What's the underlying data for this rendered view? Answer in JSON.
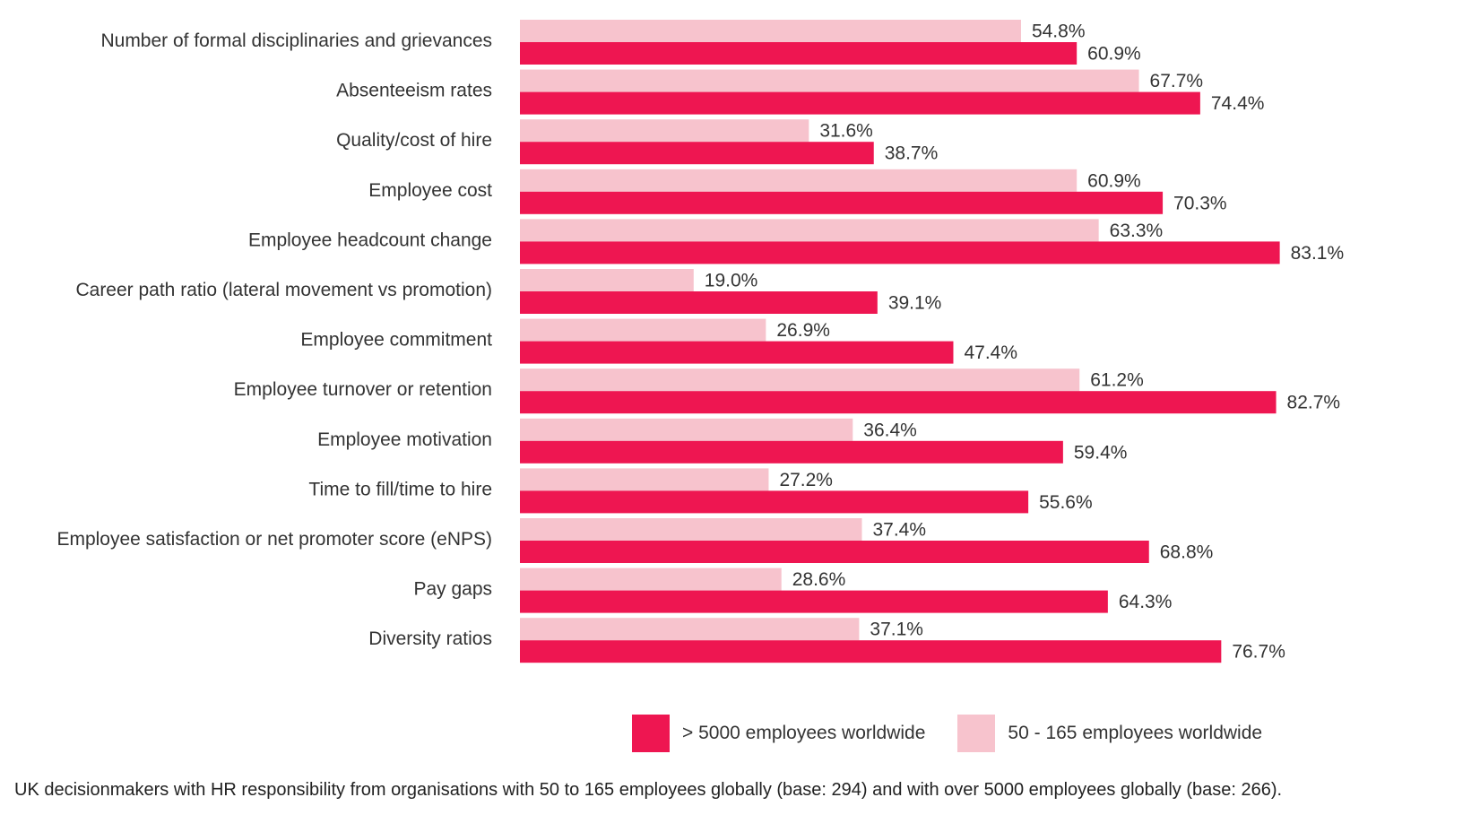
{
  "chart_data": {
    "type": "bar",
    "orientation": "horizontal",
    "categories": [
      "Number of formal disciplinaries and grievances",
      "Absenteeism rates",
      "Quality/cost of hire",
      "Employee cost",
      "Employee headcount change",
      "Career path ratio (lateral movement vs promotion)",
      "Employee commitment",
      "Employee turnover or retention",
      "Employee motivation",
      "Time to fill/time to hire",
      "Employee satisfaction or net promoter score (eNPS)",
      "Pay gaps",
      "Diversity ratios"
    ],
    "series": [
      {
        "name": "50 - 165 employees worldwide",
        "color": "#F7C3CD",
        "values": [
          54.8,
          67.7,
          31.6,
          60.9,
          63.3,
          19.0,
          26.9,
          61.2,
          36.4,
          27.2,
          37.4,
          28.6,
          37.1
        ],
        "labels": [
          "54.8%",
          "67.7%",
          "31.6%",
          "60.9%",
          "63.3%",
          "19.0%",
          "26.9%",
          "61.2%",
          "36.4%",
          "27.2%",
          "37.4%",
          "28.6%",
          "37.1%"
        ]
      },
      {
        "name": "> 5000 employees worldwide",
        "color": "#EE1651",
        "values": [
          60.9,
          74.4,
          38.7,
          70.3,
          83.1,
          39.1,
          47.4,
          82.7,
          59.4,
          55.6,
          68.8,
          64.3,
          76.7
        ],
        "labels": [
          "60.9%",
          "74.4%",
          "38.7%",
          "70.3%",
          "83.1%",
          "39.1%",
          "47.4%",
          "82.7%",
          "59.4%",
          "55.6%",
          "68.8%",
          "64.3%",
          "76.7%"
        ]
      }
    ],
    "xlim": [
      0,
      100
    ],
    "grid": false,
    "legend_position": "bottom-right"
  },
  "legend": {
    "items": [
      {
        "label": "> 5000 employees worldwide",
        "color": "#EE1651"
      },
      {
        "label": "50 - 165 employees worldwide",
        "color": "#F7C3CD"
      }
    ]
  },
  "footnote": "UK decisionmakers with HR responsibility from organisations with 50 to 165 employees globally (base: 294) and with over 5000 employees globally (base: 266)."
}
